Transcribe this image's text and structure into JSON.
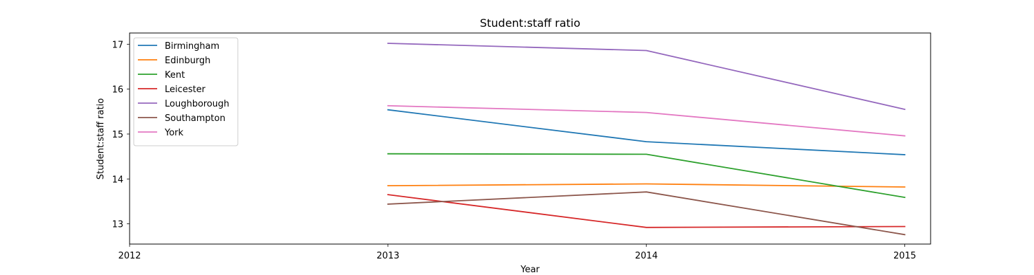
{
  "chart_data": {
    "type": "line",
    "title": "Student:staff ratio",
    "xlabel": "Year",
    "ylabel": "Student:staff ratio",
    "x": [
      2013,
      2014,
      2015
    ],
    "x_ticks": [
      2012,
      2013,
      2014,
      2015
    ],
    "xlim": [
      2012,
      2015.1
    ],
    "y_ticks": [
      13,
      14,
      15,
      16,
      17
    ],
    "ylim": [
      12.55,
      17.25
    ],
    "grid": false,
    "legend_position": "top-left",
    "series": [
      {
        "name": "Birmingham",
        "color": "#1f77b4",
        "values": [
          15.54,
          14.83,
          14.54
        ]
      },
      {
        "name": "Edinburgh",
        "color": "#ff7f0e",
        "values": [
          13.85,
          13.89,
          13.82
        ]
      },
      {
        "name": "Kent",
        "color": "#2ca02c",
        "values": [
          14.56,
          14.55,
          13.59
        ]
      },
      {
        "name": "Leicester",
        "color": "#d62728",
        "values": [
          13.65,
          12.92,
          12.94
        ]
      },
      {
        "name": "Loughborough",
        "color": "#9467bd",
        "values": [
          17.02,
          16.86,
          15.55
        ]
      },
      {
        "name": "Southampton",
        "color": "#8c564b",
        "values": [
          13.44,
          13.71,
          12.76
        ]
      },
      {
        "name": "York",
        "color": "#e377c2",
        "values": [
          15.63,
          15.48,
          14.96
        ]
      }
    ]
  }
}
